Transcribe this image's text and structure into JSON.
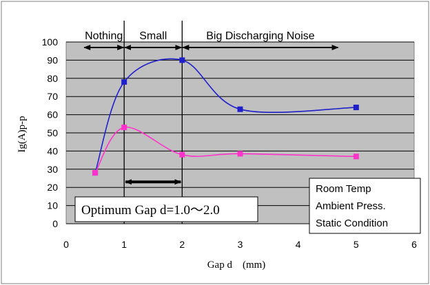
{
  "chart_data": {
    "type": "line",
    "xlabel": "Gap d　(mm)",
    "ylabel": "Ig(A)p-p",
    "xlim": [
      0,
      6
    ],
    "ylim": [
      0,
      100
    ],
    "xticks": [
      0,
      1,
      2,
      3,
      4,
      5,
      6
    ],
    "yticks": [
      0,
      10,
      20,
      30,
      40,
      50,
      60,
      70,
      80,
      90,
      100
    ],
    "grid": true,
    "legend": "none",
    "series": [
      {
        "color": "#1f1fcc",
        "x": [
          0.5,
          1,
          2,
          3,
          5
        ],
        "y": [
          28,
          78,
          90,
          63,
          64
        ]
      },
      {
        "color": "#ff33cc",
        "x": [
          0.5,
          1,
          2,
          3,
          5
        ],
        "y": [
          28,
          53,
          38,
          38.5,
          37
        ]
      }
    ],
    "vertical_lines": [
      1,
      2
    ],
    "regions": [
      {
        "label": "Nothing",
        "from": 0.3,
        "to": 1
      },
      {
        "label": "Small",
        "from": 1,
        "to": 2
      },
      {
        "label": "Big Discharging Noise",
        "from": 2,
        "to": 4.7
      }
    ],
    "optimum_arrow": {
      "from": 1,
      "to": 2,
      "y": 23
    },
    "annotation_optimum": "Optimum Gap d=1.0～2.0",
    "condition_box": [
      "Room Temp",
      "Ambient Press.",
      "Static Condition"
    ]
  }
}
